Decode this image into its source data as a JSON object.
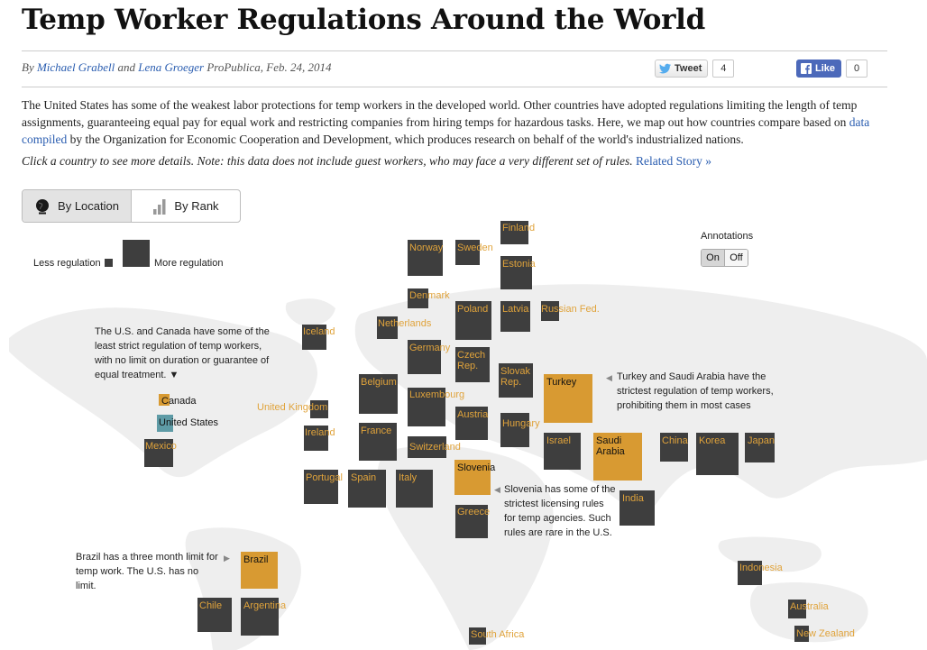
{
  "header": {
    "title": "Temp Worker Regulations Around the World",
    "by": "By",
    "author1": "Michael Grabell",
    "and": "and",
    "author2": "Lena Groeger",
    "rest": "ProPublica, Feb. 24, 2014"
  },
  "social": {
    "tweet_label": "Tweet",
    "tweet_count": "4",
    "like_label": "Like",
    "like_count": "0"
  },
  "intro": {
    "part1": "The United States has some of the weakest labor protections for temp workers in the developed world. Other countries have adopted regulations limiting the length of temp assignments, guaranteeing equal pay for equal work and restricting companies from hiring temps for hazardous tasks. Here, we map out how countries compare based on",
    "link": "data compiled",
    "part2": "by the Organization for Economic Cooperation and Development, which produces research on behalf of the world's industrialized nations."
  },
  "note": {
    "text": "Click a country to see more details. Note: this data does not include guest workers, who may face a very different set of rules.",
    "link": "Related Story »"
  },
  "view_toggle": {
    "location_label": "By Location",
    "rank_label": "By Rank",
    "active": "By Location"
  },
  "legend": {
    "less": "Less regulation",
    "more": "More regulation"
  },
  "annotations": {
    "label": "Annotations",
    "on": "On",
    "off": "Off",
    "active": "On"
  },
  "colors": {
    "country": "#3e3e3e",
    "highlight": "#d89a32",
    "united_states": "#5e9ba6",
    "label": "#e0a33b"
  },
  "callouts": {
    "us_canada": "The U.S. and Canada have some of the least strict regulation of temp workers, with no limit on duration or guarantee of equal treatment. ▼",
    "turkey_saudi": "Turkey and Saudi Arabia have the strictest regulation of temp workers, prohibiting them in most cases",
    "slovenia": "Slovenia has some of the strictest licensing rules for temp agencies. Such rules are rare in the U.S.",
    "brazil": "Brazil has a three month limit for temp work. The U.S. has no limit."
  },
  "countries": [
    {
      "name": "Finland"
    },
    {
      "name": "Norway"
    },
    {
      "name": "Sweden"
    },
    {
      "name": "Estonia"
    },
    {
      "name": "Denmark"
    },
    {
      "name": "Netherlands"
    },
    {
      "name": "Poland"
    },
    {
      "name": "Latvia"
    },
    {
      "name": "Russian Fed."
    },
    {
      "name": "Iceland"
    },
    {
      "name": "Germany"
    },
    {
      "name": "Czech Rep."
    },
    {
      "name": "Slovak Rep."
    },
    {
      "name": "Turkey"
    },
    {
      "name": "Canada"
    },
    {
      "name": "Belgium"
    },
    {
      "name": "Luxembourg"
    },
    {
      "name": "United Kingdom"
    },
    {
      "name": "United States"
    },
    {
      "name": "Austria"
    },
    {
      "name": "Hungary"
    },
    {
      "name": "Ireland"
    },
    {
      "name": "France"
    },
    {
      "name": "Israel"
    },
    {
      "name": "Saudi Arabia"
    },
    {
      "name": "China"
    },
    {
      "name": "Korea"
    },
    {
      "name": "Japan"
    },
    {
      "name": "Mexico"
    },
    {
      "name": "Switzerland"
    },
    {
      "name": "Slovenia"
    },
    {
      "name": "Portugal"
    },
    {
      "name": "Spain"
    },
    {
      "name": "Italy"
    },
    {
      "name": "India"
    },
    {
      "name": "Greece"
    },
    {
      "name": "Brazil"
    },
    {
      "name": "Indonesia"
    },
    {
      "name": "Chile"
    },
    {
      "name": "Argentina"
    },
    {
      "name": "Australia"
    },
    {
      "name": "South Africa"
    },
    {
      "name": "New Zealand"
    }
  ]
}
